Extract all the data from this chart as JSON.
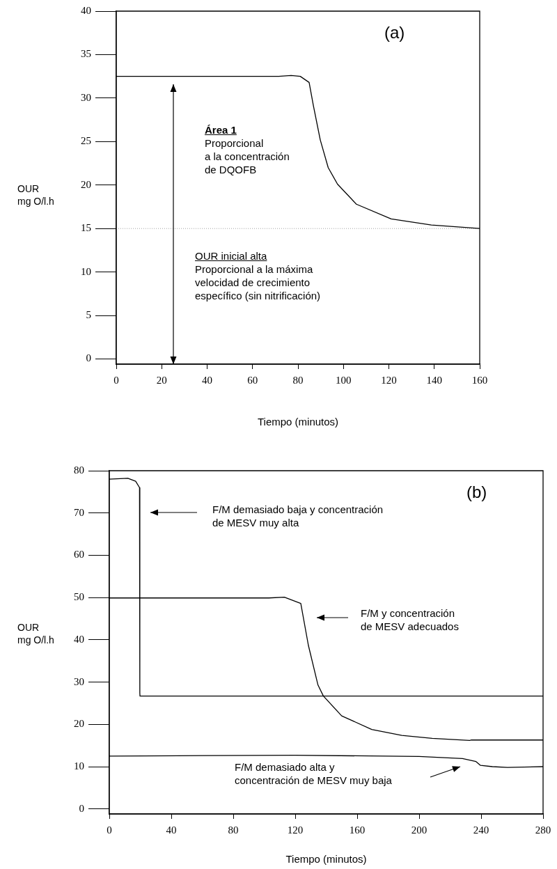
{
  "chart_data": [
    {
      "type": "line",
      "xlabel": "Tiempo (minutos)",
      "ylabel": "OUR\nmg O/l.h",
      "xlim": [
        0,
        160
      ],
      "ylim": [
        -0.6,
        40
      ],
      "xticks": [
        0,
        20,
        40,
        60,
        80,
        100,
        120,
        140,
        160
      ],
      "yticks": [
        0,
        5,
        10,
        15,
        20,
        25,
        30,
        35,
        40
      ],
      "series": [
        {
          "color": "#000000",
          "x": [
            0,
            40,
            71.5,
            77,
            81,
            84.9,
            86.8,
            89.8,
            93.3,
            97.4,
            105.7,
            121,
            138.7,
            160
          ],
          "values": [
            32.5,
            32.5,
            32.5,
            32.6,
            32.5,
            31.8,
            29.1,
            25.2,
            22.0,
            20.1,
            17.8,
            16.1,
            15.4,
            15.0
          ]
        }
      ],
      "ref_lines": [
        {
          "axis": "y",
          "value": 15,
          "color": "#a0a0a0",
          "line_style": "dotted"
        }
      ],
      "annotations": [
        "(a)",
        "Área 1\nProporcional\na la concentración\nde DQOFB",
        "OUR inicial alta\nProporcional a la máxima\nvelocidad de crecimiento\nespecífico (sin nitrificación)"
      ]
    },
    {
      "type": "line",
      "xlabel": "Tiempo (minutos)",
      "ylabel": "OUR\nmg O/l.h",
      "xlim": [
        0,
        280
      ],
      "ylim": [
        -1.2,
        80
      ],
      "xticks": [
        0,
        40,
        80,
        120,
        160,
        200,
        240,
        280
      ],
      "yticks": [
        0,
        10,
        20,
        30,
        40,
        50,
        60,
        70,
        80
      ],
      "series": [
        {
          "color": "#000000",
          "x": [
            0,
            12,
            17,
            19.5,
            19.7,
            19.8,
            280
          ],
          "values": [
            78,
            78.2,
            77.5,
            76,
            27.4,
            26.7,
            26.7
          ]
        },
        {
          "color": "#000000",
          "x": [
            0,
            60,
            103,
            113,
            123.6,
            128.5,
            134.7,
            138.2,
            150,
            169.4,
            188.8,
            208.4,
            232.7,
            233.5,
            280
          ],
          "values": [
            49.9,
            49.9,
            49.9,
            50.1,
            48.6,
            38.7,
            29.3,
            26.7,
            22.0,
            18.8,
            17.4,
            16.7,
            16.2,
            16.3,
            16.3
          ]
        },
        {
          "color": "#000000",
          "x": [
            0,
            60,
            120,
            200,
            228,
            236.7,
            239.6,
            247.3,
            257,
            280
          ],
          "values": [
            12.5,
            12.6,
            12.7,
            12.4,
            11.9,
            11.2,
            10.3,
            10.0,
            9.8,
            10.0
          ]
        }
      ],
      "annotations": [
        "(b)",
        "F/M demasiado baja y concentración\nde MESV muy alta",
        "F/M y concentración\nde MESV adecuados",
        "F/M demasiado alta y\nconcentración de MESV muy baja"
      ]
    }
  ]
}
